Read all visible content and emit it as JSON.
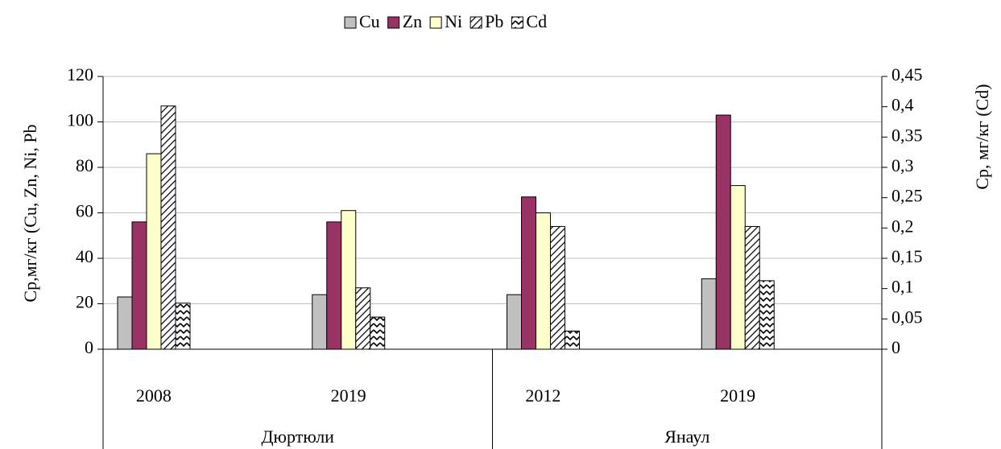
{
  "chart_data": {
    "type": "bar",
    "y_label": "Ср,мг/кг (Cu, Zn, Ni, Pb",
    "y2_label": "Ср, мг/кг (Cd)",
    "categories": [
      "2008",
      "2019",
      "2012",
      "2019"
    ],
    "groups": [
      "Дюртюли",
      "Янаул"
    ],
    "series": [
      {
        "name": "Cu",
        "color": "#c0c0c0",
        "values": [
          23,
          24,
          24,
          31
        ]
      },
      {
        "name": "Zn",
        "color": "#993366",
        "values": [
          56,
          56,
          67,
          103
        ]
      },
      {
        "name": "Ni",
        "color": "#ffffcc",
        "values": [
          86,
          61,
          60,
          72
        ]
      },
      {
        "name": "Pb",
        "color": "#ffffff",
        "pattern": "diagonal",
        "values": [
          107,
          27,
          54,
          54
        ]
      },
      {
        "name": "Cd",
        "color": "#ffffff",
        "pattern": "zigzag",
        "axis": "y2",
        "values": [
          0.076,
          0.053,
          0.03,
          0.113
        ]
      }
    ],
    "ylim": [
      0,
      120
    ],
    "yticks": [
      0,
      20,
      40,
      60,
      80,
      100,
      120
    ],
    "y2lim": [
      0,
      0.45
    ],
    "y2ticks": [
      0,
      {
        "value": 0.05,
        "label": "0,05"
      },
      {
        "value": 0.1,
        "label": "0,1"
      },
      {
        "value": 0.15,
        "label": "0,15"
      },
      {
        "value": 0.2,
        "label": "0,2"
      },
      {
        "value": 0.25,
        "label": "0,25"
      },
      {
        "value": 0.3,
        "label": "0,3"
      },
      {
        "value": 0.35,
        "label": "0,35"
      },
      {
        "value": 0.4,
        "label": "0,4"
      },
      {
        "value": 0.45,
        "label": "0,45"
      }
    ],
    "grid": true,
    "legend": "top"
  }
}
